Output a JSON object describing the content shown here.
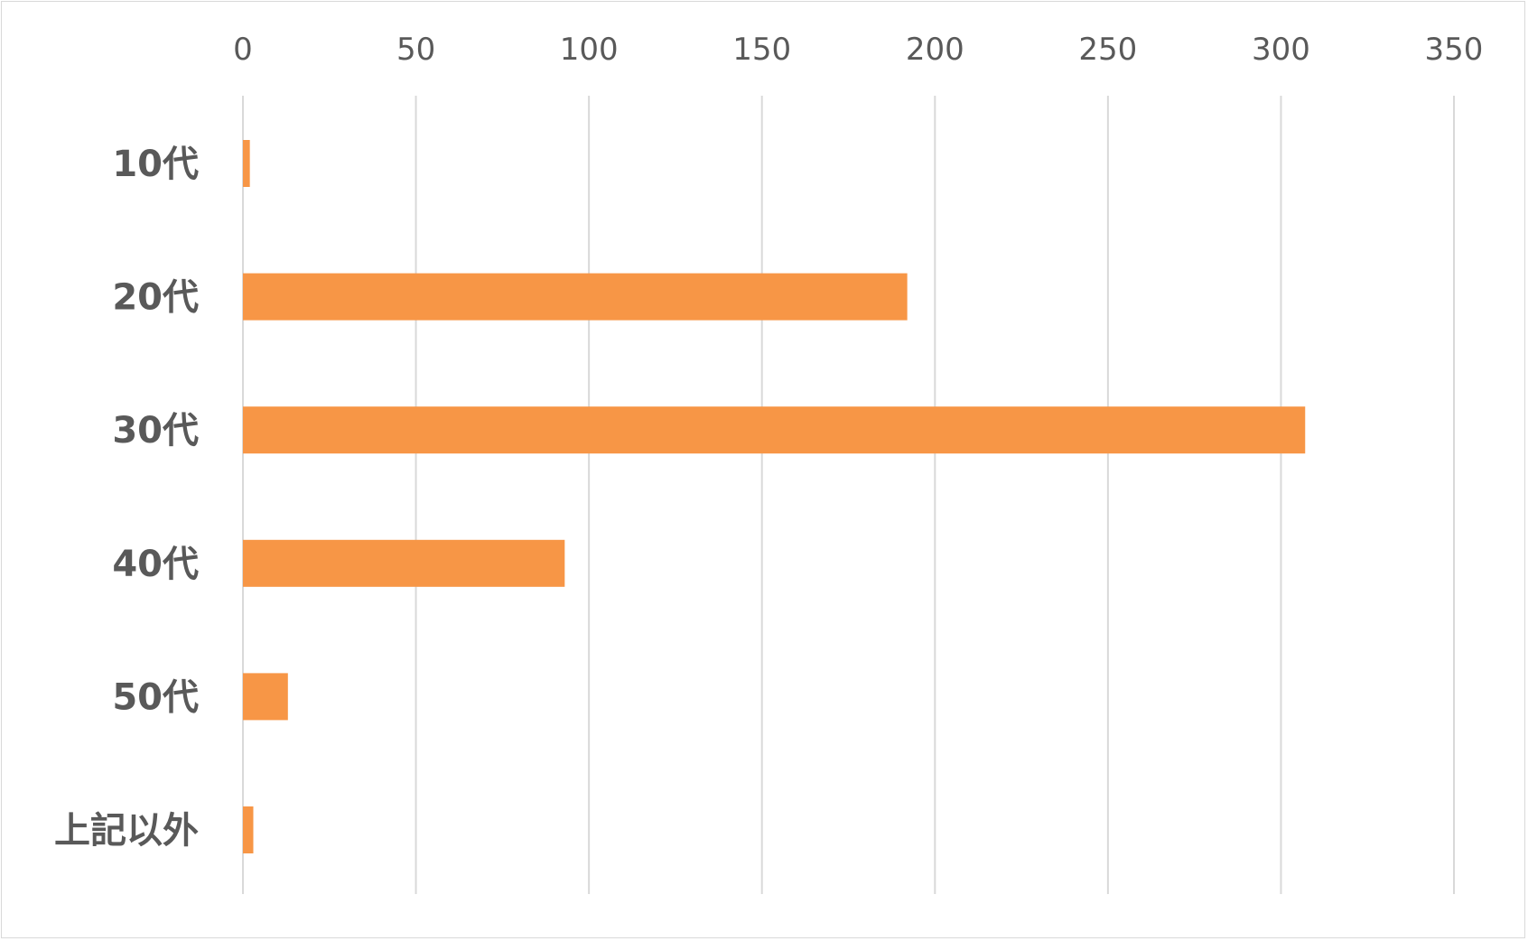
{
  "chart_data": {
    "type": "bar",
    "orientation": "horizontal",
    "title": "",
    "xlabel": "",
    "ylabel": "",
    "categories": [
      "10代",
      "20代",
      "30代",
      "40代",
      "50代",
      "上記以外"
    ],
    "values": [
      2,
      192,
      307,
      93,
      13,
      3
    ],
    "xlim": [
      0,
      350
    ],
    "x_ticks": [
      0,
      50,
      100,
      150,
      200,
      250,
      300,
      350
    ],
    "x_tick_labels": [
      "0",
      "50",
      "100",
      "150",
      "200",
      "250",
      "300",
      "350"
    ],
    "axis_position": "top",
    "grid": true,
    "legend": "none",
    "bar_color": "#F79646",
    "grid_color": "#D9D9D9",
    "label_color": "#595959"
  }
}
